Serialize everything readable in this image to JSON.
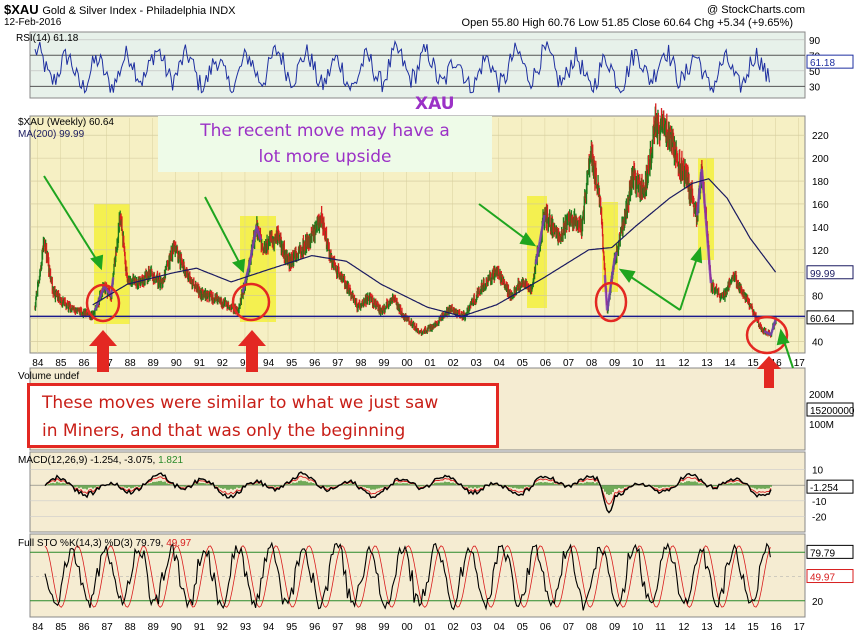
{
  "header": {
    "ticker": "$XAU",
    "name": "Gold & Silver Index - Philadelphia INDX",
    "date": "12-Feb-2016",
    "credit": "@ StockCharts.com",
    "ohlc": "Open 55.80   High 60.76   Low 51.85   Close 60.64   Chg +5.34 (+9.65%)"
  },
  "annotations": {
    "xau_label": "XAU",
    "upside_note_line1": "The recent move may have a",
    "upside_note_line2": "lot more upside",
    "callout_line1": "These moves were similar to what we just saw",
    "callout_line2": "in Miners, and that was only the beginning"
  },
  "colors": {
    "price_panel_bg": "#f6f0c4",
    "rsi_panel_bg": "#e7f1ea",
    "lower_panel_bg": "#f5ecd2",
    "bar_up": "#1a7a1a",
    "bar_down": "#d81e1e",
    "ma_line": "#1a1a60",
    "rsi_line": "#1e2fa0",
    "highlight": "#f3f02a",
    "arrow_green": "#1fa51f",
    "arrow_red": "#e32822",
    "xau_purple": "#9b31c6",
    "note_green": "#9b31c6"
  },
  "chart_data": [
    {
      "type": "line",
      "title": "RSI(14) 61.18",
      "indicator": "RSI(14)",
      "last_value": 61.18,
      "y_ticks": [
        90,
        70,
        50,
        30
      ],
      "ylim": [
        15,
        100
      ]
    },
    {
      "type": "bar",
      "title": "$XAU (Weekly) 60.64",
      "series": [
        {
          "name": "$XAU (Weekly)",
          "last_value": 60.64
        },
        {
          "name": "MA(200)",
          "last_value": 99.99
        }
      ],
      "x_ticks": [
        "84",
        "85",
        "86",
        "87",
        "88",
        "89",
        "90",
        "91",
        "92",
        "93",
        "94",
        "95",
        "96",
        "97",
        "98",
        "99",
        "00",
        "01",
        "02",
        "03",
        "04",
        "05",
        "06",
        "07",
        "08",
        "09",
        "10",
        "11",
        "12",
        "13",
        "14",
        "15",
        "16",
        "17"
      ],
      "y_ticks": [
        220,
        200,
        180,
        160,
        140,
        120,
        100,
        80,
        60,
        40
      ],
      "ylim": [
        30,
        235
      ],
      "support_level": 62,
      "price_anchors": [
        {
          "x": 1984.0,
          "y": 70
        },
        {
          "x": 1984.4,
          "y": 128
        },
        {
          "x": 1984.8,
          "y": 82
        },
        {
          "x": 1985.5,
          "y": 70
        },
        {
          "x": 1986.5,
          "y": 62
        },
        {
          "x": 1987.0,
          "y": 88
        },
        {
          "x": 1987.3,
          "y": 80
        },
        {
          "x": 1987.7,
          "y": 152
        },
        {
          "x": 1988.0,
          "y": 92
        },
        {
          "x": 1988.5,
          "y": 92
        },
        {
          "x": 1989.0,
          "y": 100
        },
        {
          "x": 1989.5,
          "y": 90
        },
        {
          "x": 1990.0,
          "y": 122
        },
        {
          "x": 1990.6,
          "y": 98
        },
        {
          "x": 1991.2,
          "y": 82
        },
        {
          "x": 1992.0,
          "y": 76
        },
        {
          "x": 1992.8,
          "y": 66
        },
        {
          "x": 1993.3,
          "y": 108
        },
        {
          "x": 1993.6,
          "y": 140
        },
        {
          "x": 1993.9,
          "y": 122
        },
        {
          "x": 1994.5,
          "y": 132
        },
        {
          "x": 1995.0,
          "y": 108
        },
        {
          "x": 1995.5,
          "y": 120
        },
        {
          "x": 1996.1,
          "y": 132
        },
        {
          "x": 1996.4,
          "y": 150
        },
        {
          "x": 1996.8,
          "y": 112
        },
        {
          "x": 1997.5,
          "y": 88
        },
        {
          "x": 1998.0,
          "y": 70
        },
        {
          "x": 1998.5,
          "y": 78
        },
        {
          "x": 1999.0,
          "y": 66
        },
        {
          "x": 1999.5,
          "y": 78
        },
        {
          "x": 2000.0,
          "y": 62
        },
        {
          "x": 2000.7,
          "y": 48
        },
        {
          "x": 2001.2,
          "y": 52
        },
        {
          "x": 2002.0,
          "y": 68
        },
        {
          "x": 2002.6,
          "y": 62
        },
        {
          "x": 2003.3,
          "y": 85
        },
        {
          "x": 2004.0,
          "y": 102
        },
        {
          "x": 2004.6,
          "y": 80
        },
        {
          "x": 2005.1,
          "y": 92
        },
        {
          "x": 2005.5,
          "y": 85
        },
        {
          "x": 2006.1,
          "y": 152
        },
        {
          "x": 2006.7,
          "y": 130
        },
        {
          "x": 2007.2,
          "y": 150
        },
        {
          "x": 2007.7,
          "y": 140
        },
        {
          "x": 2008.1,
          "y": 205
        },
        {
          "x": 2008.5,
          "y": 162
        },
        {
          "x": 2008.8,
          "y": 66
        },
        {
          "x": 2009.1,
          "y": 110
        },
        {
          "x": 2009.6,
          "y": 150
        },
        {
          "x": 2009.9,
          "y": 185
        },
        {
          "x": 2010.4,
          "y": 170
        },
        {
          "x": 2010.9,
          "y": 232
        },
        {
          "x": 2011.4,
          "y": 222
        },
        {
          "x": 2011.8,
          "y": 200
        },
        {
          "x": 2012.3,
          "y": 178
        },
        {
          "x": 2012.7,
          "y": 150
        },
        {
          "x": 2012.9,
          "y": 192
        },
        {
          "x": 2013.3,
          "y": 90
        },
        {
          "x": 2013.8,
          "y": 78
        },
        {
          "x": 2014.3,
          "y": 98
        },
        {
          "x": 2014.7,
          "y": 80
        },
        {
          "x": 2015.0,
          "y": 72
        },
        {
          "x": 2015.5,
          "y": 50
        },
        {
          "x": 2015.9,
          "y": 46
        },
        {
          "x": 2016.12,
          "y": 60.64
        }
      ],
      "ma_anchors": [
        {
          "x": 1986.5,
          "y": 72
        },
        {
          "x": 1988.0,
          "y": 90
        },
        {
          "x": 1990.0,
          "y": 100
        },
        {
          "x": 1991.0,
          "y": 104
        },
        {
          "x": 1992.5,
          "y": 92
        },
        {
          "x": 1994.0,
          "y": 102
        },
        {
          "x": 1996.0,
          "y": 115
        },
        {
          "x": 1997.5,
          "y": 110
        },
        {
          "x": 1999.0,
          "y": 90
        },
        {
          "x": 2001.0,
          "y": 70
        },
        {
          "x": 2002.5,
          "y": 62
        },
        {
          "x": 2004.0,
          "y": 72
        },
        {
          "x": 2006.0,
          "y": 95
        },
        {
          "x": 2008.0,
          "y": 120
        },
        {
          "x": 2009.0,
          "y": 122
        },
        {
          "x": 2010.0,
          "y": 140
        },
        {
          "x": 2011.5,
          "y": 165
        },
        {
          "x": 2012.5,
          "y": 178
        },
        {
          "x": 2013.2,
          "y": 182
        },
        {
          "x": 2014.0,
          "y": 165
        },
        {
          "x": 2015.0,
          "y": 130
        },
        {
          "x": 2016.12,
          "y": 99.99
        }
      ]
    },
    {
      "type": "bar",
      "title": "Volume undef",
      "y_ticks": [
        "200M",
        "100M"
      ],
      "last_value_label": "15200000"
    },
    {
      "type": "line",
      "title": "MACD(12,26,9) -1.254, -3.075, 1.821",
      "indicator": "MACD(12,26,9)",
      "values": {
        "macd": -1.254,
        "signal": -3.075,
        "histogram": 1.821
      },
      "y_ticks": [
        10,
        0,
        -10,
        -20
      ],
      "ylim": [
        -30,
        20
      ]
    },
    {
      "type": "line",
      "title": "Full STO %K(14,3) %D(3) 79.79, 49.97",
      "indicator": "Full STO",
      "values": {
        "k": 79.79,
        "d": 49.97
      },
      "y_ticks": [
        20
      ],
      "overbought": 80,
      "oversold": 20,
      "ylim": [
        0,
        100
      ]
    }
  ],
  "labels": {
    "rsi_title": "RSI(14)",
    "rsi_value": "61.18",
    "rsi_flag": "61.18",
    "price_title": "$XAU (Weekly) 60.64",
    "ma_title": "MA(200) 99.99",
    "ma_flag": "99.99",
    "price_flag": "60.64",
    "vol_title": "Volume undef",
    "vol_flag": "15200000",
    "macd_title": "MACD(12,26,9) -1.254, -3.075,",
    "macd_hist": "1.821",
    "macd_flag": "-1.254",
    "sto_title": "Full STO %K(14,3) %D(3) 79.79,",
    "sto_d": "49.97",
    "sto_flag_k": "79.79",
    "sto_flag_d": "49.97"
  }
}
